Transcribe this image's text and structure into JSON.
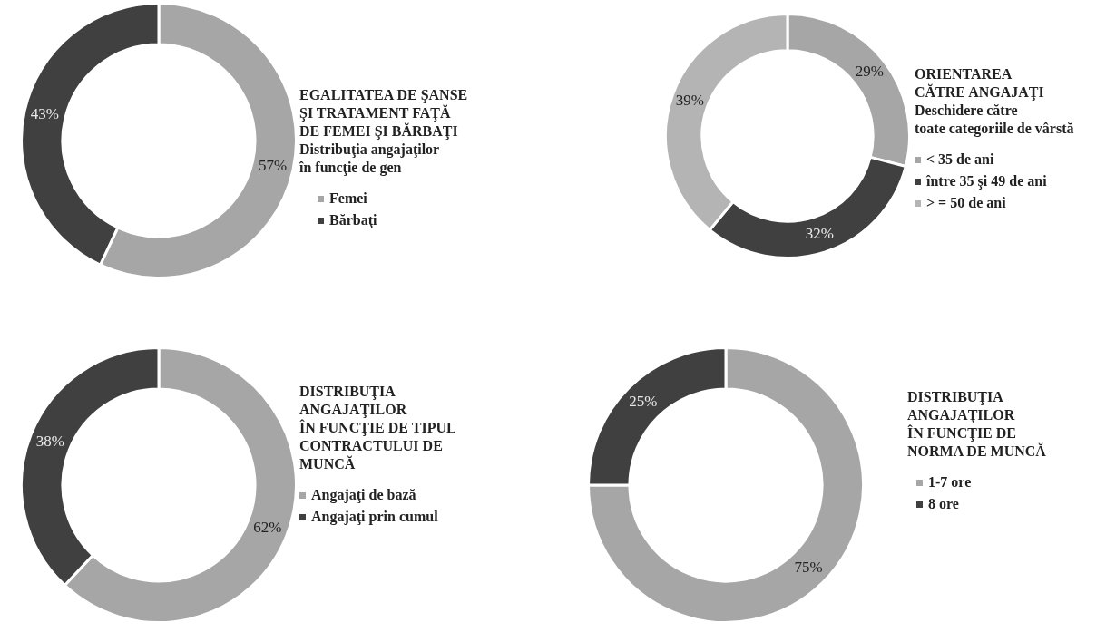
{
  "chart_data": [
    {
      "type": "donut",
      "title": "EGALITATEA DE ŞANSE\nŞI TRATAMENT FAŢĂ\nDE FEMEI ŞI BĂRBAŢI",
      "subtitle": "Distribuţia angajaţilor\nîn funcţie de gen",
      "categories": [
        "Femei",
        "Bărbaţi"
      ],
      "values": [
        57,
        43
      ],
      "value_labels": [
        "57%",
        "43%"
      ],
      "colors": [
        "#a6a6a6",
        "#404040"
      ],
      "legend": "right"
    },
    {
      "type": "donut",
      "title": "ORIENTAREA\nCĂTRE ANGAJAŢI",
      "subtitle": "Deschidere către\ntoate categoriile de vârstă",
      "categories": [
        "< 35 de ani",
        "între 35 şi 49 de ani",
        "> = 50 de ani"
      ],
      "values": [
        29,
        32,
        39
      ],
      "value_labels": [
        "29%",
        "32%",
        "39%"
      ],
      "colors": [
        "#a6a6a6",
        "#404040",
        "#b4b4b4"
      ],
      "legend": "right"
    },
    {
      "type": "donut",
      "title": "DISTRIBUŢIA\nANGAJAŢILOR\nÎN FUNCŢIE DE TIPUL\nCONTRACTULUI DE\nMUNCĂ",
      "categories": [
        "Angajaţi de bază",
        "Angajaţi prin cumul"
      ],
      "values": [
        62,
        38
      ],
      "value_labels": [
        "62%",
        "38%"
      ],
      "colors": [
        "#a6a6a6",
        "#404040"
      ],
      "legend": "right"
    },
    {
      "type": "donut",
      "title": "DISTRIBUŢIA\nANGAJAŢILOR\nÎN FUNCŢIE DE\nNORMA DE MUNCĂ",
      "categories": [
        "1-7 ore",
        "8 ore"
      ],
      "values": [
        75,
        25
      ],
      "value_labels": [
        "75%",
        "25%"
      ],
      "colors": [
        "#a6a6a6",
        "#404040"
      ],
      "legend": "right"
    }
  ]
}
